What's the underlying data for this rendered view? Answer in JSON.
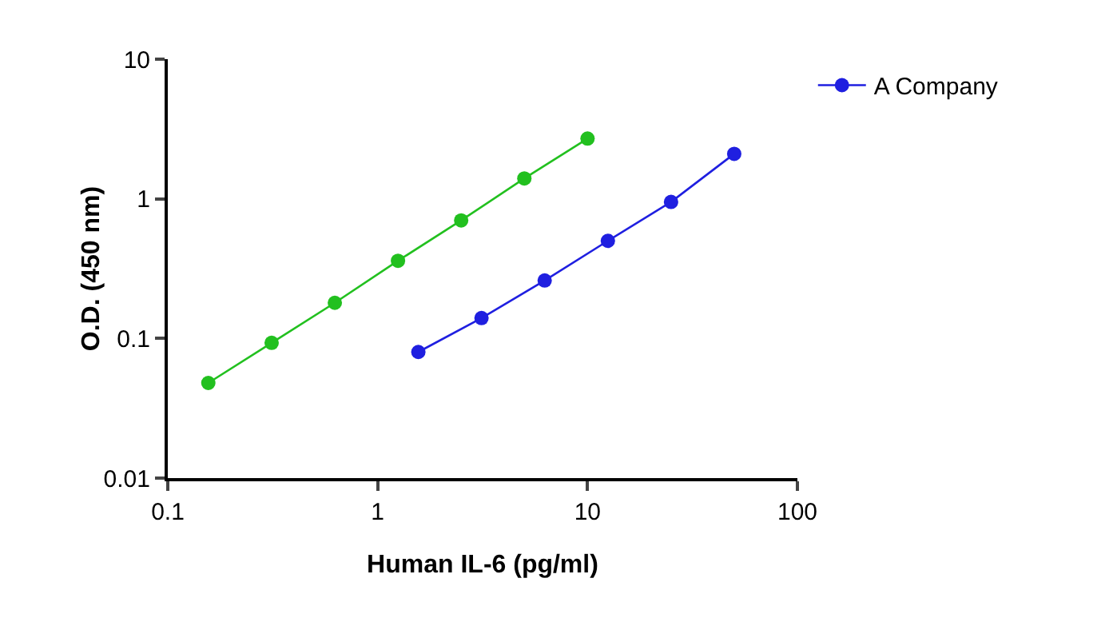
{
  "chart_data": {
    "type": "line",
    "xlabel": "Human IL-6 (pg/ml)",
    "ylabel": "O.D. (450 nm)",
    "log": "xy",
    "grid": false,
    "legend": "right",
    "marker": "circle",
    "line_style": "solid",
    "xlim": [
      0.1,
      100
    ],
    "xticks": [
      0.1,
      1,
      10,
      100
    ],
    "ylim": [
      0.01,
      10
    ],
    "yticks": [
      0.01,
      0.1,
      1,
      10
    ],
    "series": [
      {
        "name": "A Company",
        "color": "#1f1fe0",
        "x": [
          1.5625,
          3.125,
          6.25,
          12.5,
          25,
          50
        ],
        "values": [
          0.08,
          0.14,
          0.26,
          0.5,
          0.95,
          2.1
        ]
      },
      {
        "color": "#22c01f",
        "x": [
          0.156,
          0.3125,
          0.625,
          1.25,
          2.5,
          5,
          10
        ],
        "values": [
          0.048,
          0.093,
          0.18,
          0.36,
          0.7,
          1.4,
          2.7
        ]
      }
    ]
  }
}
